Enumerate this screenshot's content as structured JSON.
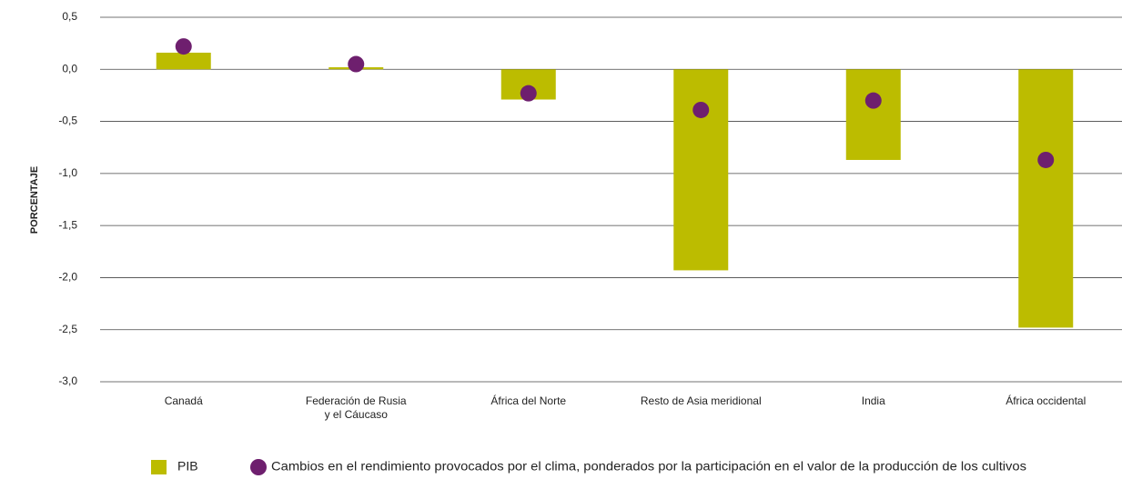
{
  "chart_data": {
    "type": "bar",
    "categories": [
      "Canadá",
      "Federación de Rusia\ny el Cáucaso",
      "África del Norte",
      "Resto de Asia meridional",
      "India",
      "África occidental"
    ],
    "series": [
      {
        "name": "PIB",
        "color": "#bcbc00",
        "mark": "bar",
        "values": [
          0.16,
          0.02,
          -0.29,
          -1.93,
          -0.87,
          -2.48
        ]
      },
      {
        "name": "Cambios en el rendimiento provocados por el clima, ponderados por la participación en el valor de la producción de los cultivos",
        "color": "#6e1f6e",
        "mark": "circle",
        "values": [
          0.22,
          0.05,
          -0.23,
          -0.39,
          -0.3,
          -0.87
        ]
      }
    ],
    "ylabel": "PORCENTAJE",
    "ylim": [
      -3.0,
      0.5
    ],
    "yticks": [
      {
        "value": 0.5,
        "label": "0,5"
      },
      {
        "value": 0.0,
        "label": "0,0"
      },
      {
        "value": -0.5,
        "label": "-0,5"
      },
      {
        "value": -1.0,
        "label": "-1,0"
      },
      {
        "value": -1.5,
        "label": "-1,5"
      },
      {
        "value": -2.0,
        "label": "-2,0"
      },
      {
        "value": -2.5,
        "label": "-2,5"
      },
      {
        "value": -3.0,
        "label": "-3,0"
      }
    ],
    "grid": true
  }
}
